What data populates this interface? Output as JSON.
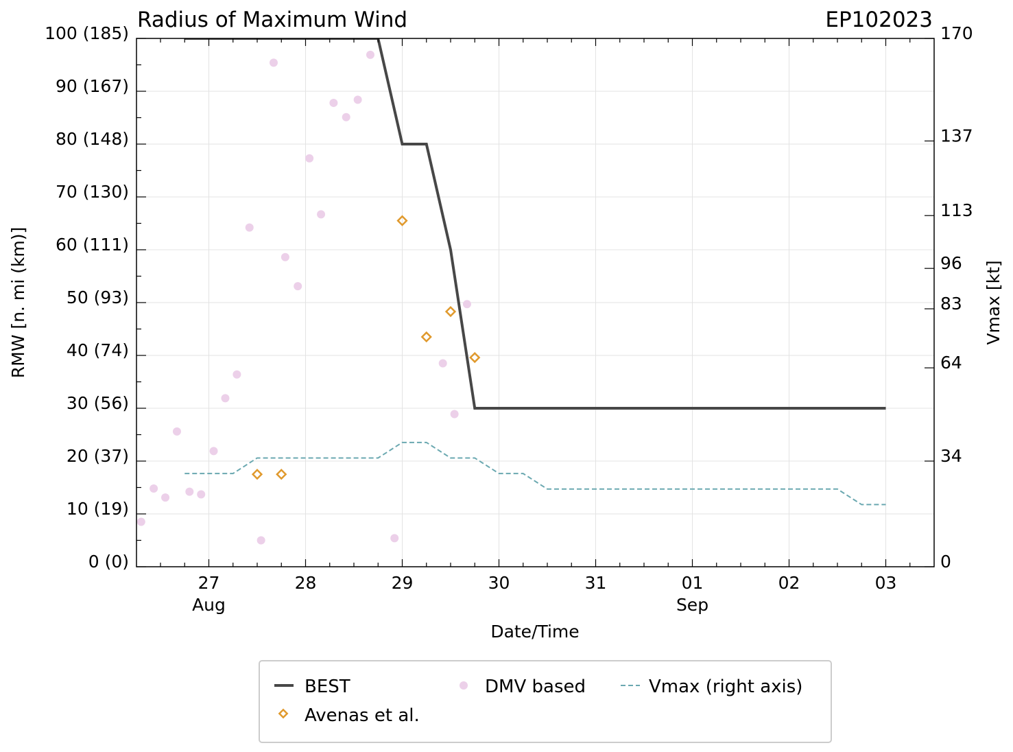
{
  "chart_data": {
    "type": "line",
    "title": "Radius of Maximum Wind",
    "storm_id": "EP102023",
    "xlabel": "Date/Time",
    "ylabel": "RMW [n. mi (km)]",
    "y2label": "Vmax [kt]",
    "x_unit": "days since 2023-08-27 00 UTC",
    "xlim": [
      -0.75,
      7.25
    ],
    "ylim": [
      0,
      100
    ],
    "x_ticks": [
      {
        "x": 0,
        "label": "27"
      },
      {
        "x": 1,
        "label": "28"
      },
      {
        "x": 2,
        "label": "29"
      },
      {
        "x": 3,
        "label": "30"
      },
      {
        "x": 4,
        "label": "31"
      },
      {
        "x": 5,
        "label": "01"
      },
      {
        "x": 6,
        "label": "02"
      },
      {
        "x": 7,
        "label": "03"
      }
    ],
    "x_month_labels": [
      {
        "x": 0,
        "label": "Aug"
      },
      {
        "x": 5,
        "label": "Sep"
      }
    ],
    "y_ticks": [
      {
        "y": 0,
        "label": "0 (0)"
      },
      {
        "y": 10,
        "label": "10 (19)"
      },
      {
        "y": 20,
        "label": "20 (37)"
      },
      {
        "y": 30,
        "label": "30 (56)"
      },
      {
        "y": 40,
        "label": "40 (74)"
      },
      {
        "y": 50,
        "label": "50 (93)"
      },
      {
        "y": 60,
        "label": "60 (111)"
      },
      {
        "y": 70,
        "label": "70 (130)"
      },
      {
        "y": 80,
        "label": "80 (148)"
      },
      {
        "y": 90,
        "label": "90 (167)"
      },
      {
        "y": 100,
        "label": "100 (185)"
      }
    ],
    "y2lim": [
      0,
      170
    ],
    "y2_ticks": [
      {
        "v": 0,
        "label": "0"
      },
      {
        "v": 34,
        "label": "34"
      },
      {
        "v": 64,
        "label": "64"
      },
      {
        "v": 83,
        "label": "83"
      },
      {
        "v": 96,
        "label": "96"
      },
      {
        "v": 113,
        "label": "113"
      },
      {
        "v": 137,
        "label": "137"
      },
      {
        "v": 170,
        "label": "170"
      }
    ],
    "grid": true,
    "legend_position": "bottom-center",
    "series": [
      {
        "name": "BEST",
        "type": "line",
        "axis": "left",
        "color": "#474747",
        "points": [
          [
            -0.25,
            100
          ],
          [
            0.5,
            100
          ],
          [
            1.75,
            100
          ],
          [
            2.0,
            80
          ],
          [
            2.25,
            80
          ],
          [
            2.5,
            60
          ],
          [
            2.75,
            30
          ],
          [
            7.0,
            30
          ]
        ]
      },
      {
        "name": "Avenas et al.",
        "type": "scatter",
        "marker": "diamond",
        "axis": "left",
        "color": "#e0992c",
        "points": [
          [
            0.5,
            17.5
          ],
          [
            0.75,
            17.5
          ],
          [
            2.0,
            65.5
          ],
          [
            2.25,
            43.5
          ],
          [
            2.5,
            48.3
          ],
          [
            2.75,
            39.6
          ]
        ]
      },
      {
        "name": "DMV based",
        "type": "scatter",
        "marker": "circle",
        "axis": "left",
        "color": "#ecd0e9",
        "points": [
          [
            -0.7,
            8.5
          ],
          [
            -0.57,
            14.8
          ],
          [
            -0.45,
            13.1
          ],
          [
            -0.33,
            25.6
          ],
          [
            -0.2,
            14.2
          ],
          [
            -0.08,
            13.7
          ],
          [
            0.05,
            21.9
          ],
          [
            0.17,
            31.9
          ],
          [
            0.29,
            36.4
          ],
          [
            0.42,
            64.2
          ],
          [
            0.54,
            5.0
          ],
          [
            0.67,
            95.4
          ],
          [
            0.79,
            58.6
          ],
          [
            0.92,
            53.1
          ],
          [
            1.04,
            77.3
          ],
          [
            1.16,
            66.7
          ],
          [
            1.29,
            87.8
          ],
          [
            1.42,
            85.1
          ],
          [
            1.54,
            88.4
          ],
          [
            1.67,
            96.9
          ],
          [
            1.92,
            5.4
          ],
          [
            2.42,
            38.5
          ],
          [
            2.54,
            28.9
          ],
          [
            2.67,
            49.7
          ]
        ]
      },
      {
        "name": "Vmax (right axis)",
        "type": "line",
        "style": "dashed",
        "axis": "right",
        "color": "#6aa8b0",
        "points": [
          [
            -0.25,
            30
          ],
          [
            0.25,
            30
          ],
          [
            0.5,
            35
          ],
          [
            1.75,
            35
          ],
          [
            2.0,
            40
          ],
          [
            2.25,
            40
          ],
          [
            2.5,
            35
          ],
          [
            2.75,
            35
          ],
          [
            3.0,
            30
          ],
          [
            3.25,
            30
          ],
          [
            3.5,
            25
          ],
          [
            6.5,
            25
          ],
          [
            6.75,
            20
          ],
          [
            7.0,
            20
          ]
        ]
      }
    ]
  }
}
